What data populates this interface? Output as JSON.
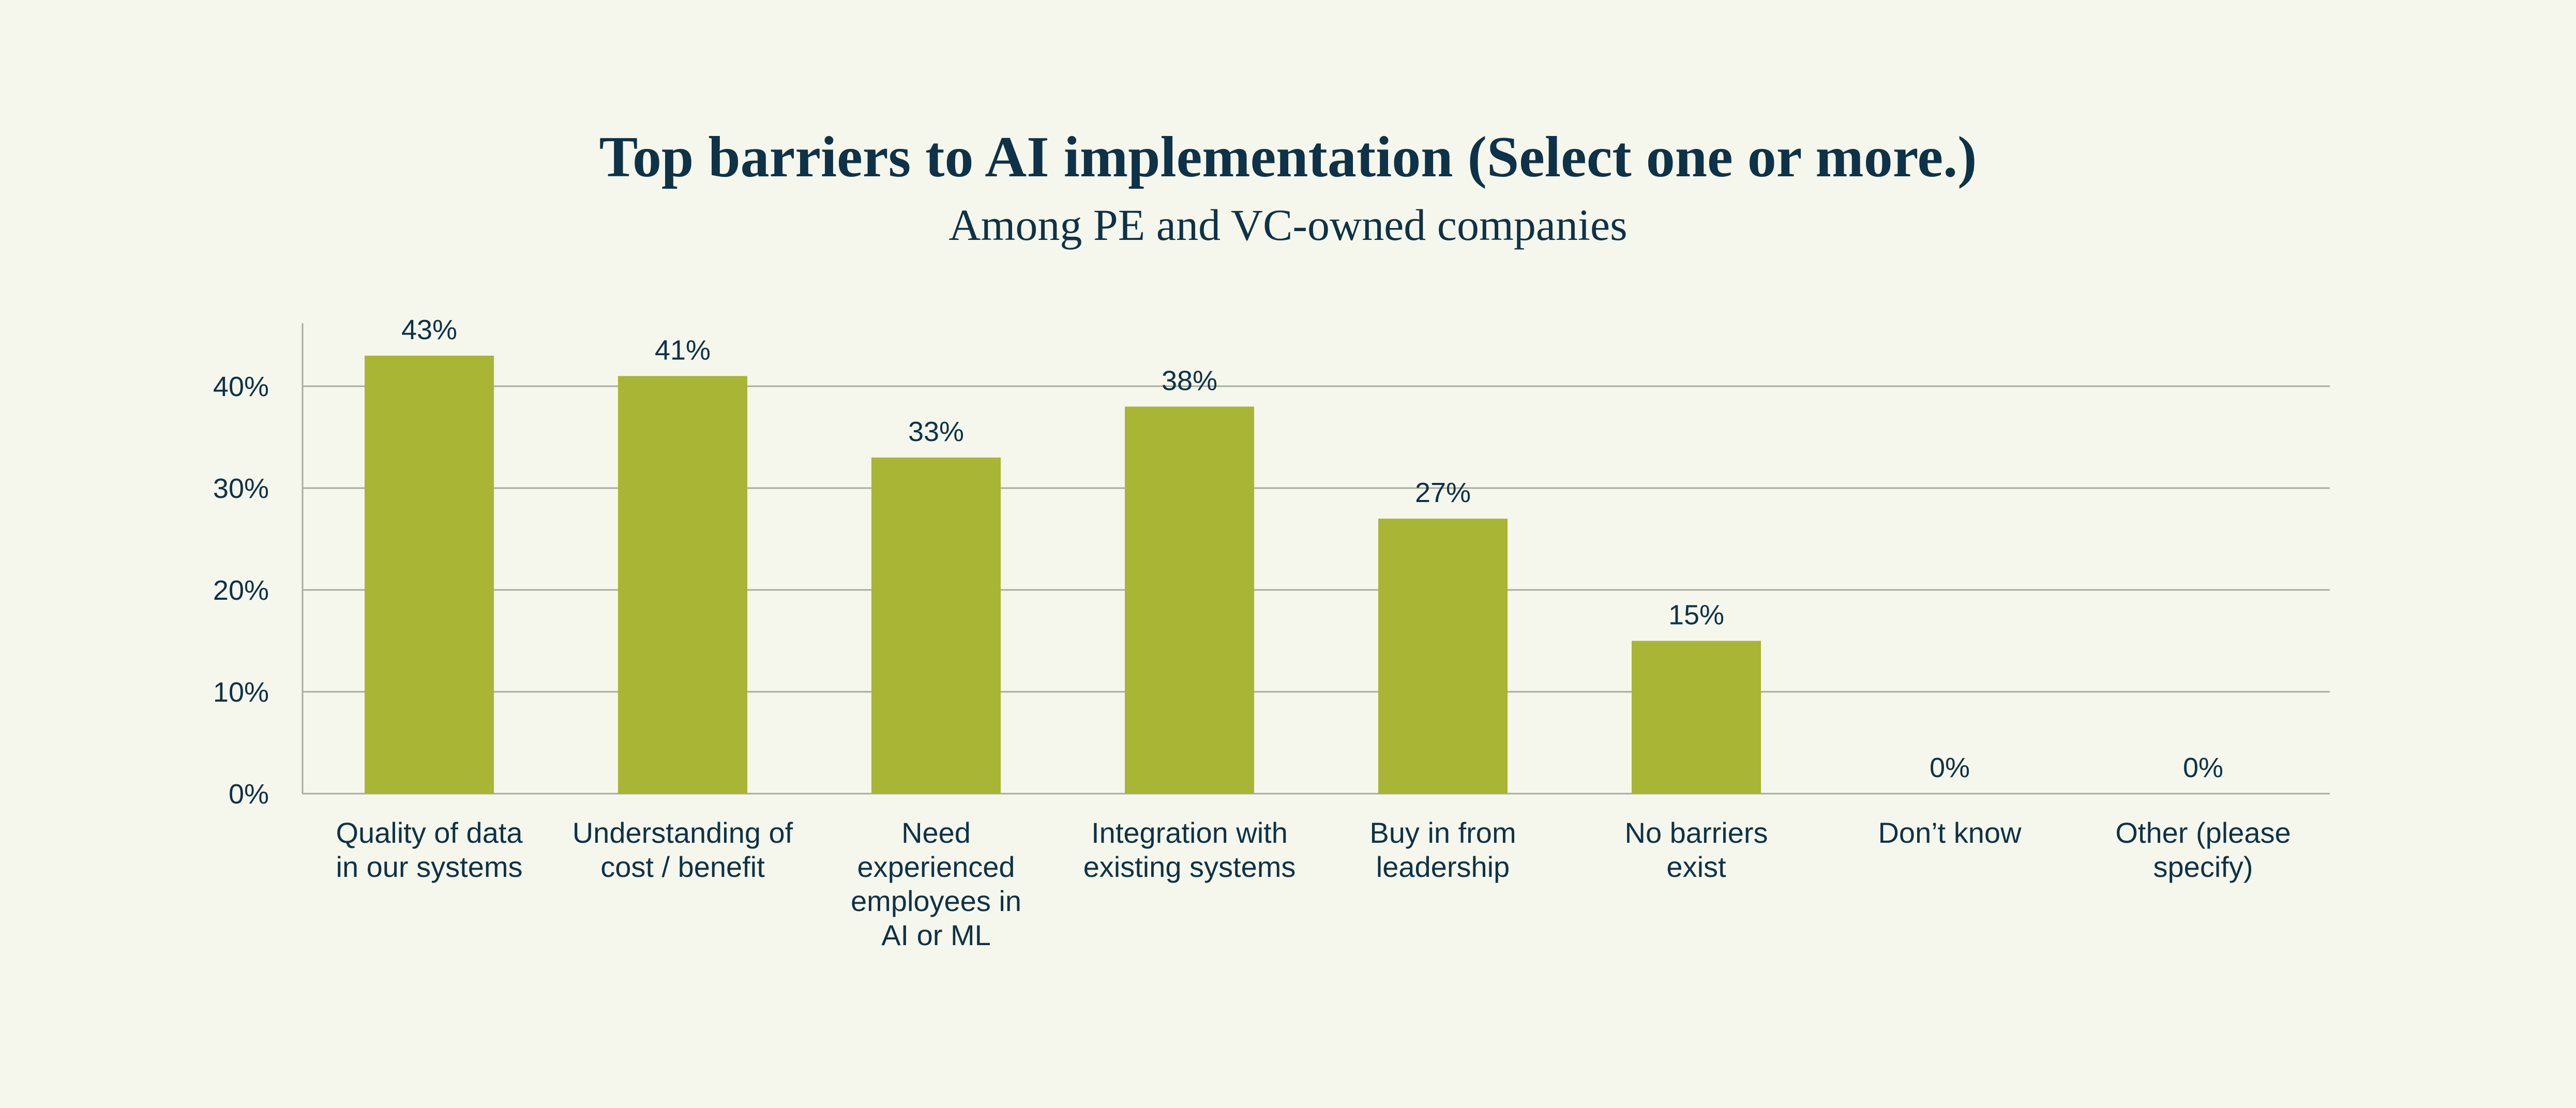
{
  "chart_data": {
    "type": "bar",
    "title": "Top barriers to AI implementation (Select one or more.)",
    "subtitle": "Among PE and VC-owned companies",
    "categories": [
      [
        "Quality of data",
        "in our systems"
      ],
      [
        "Understanding of",
        "cost / benefit"
      ],
      [
        "Need",
        "experienced",
        "employees in",
        "AI or ML"
      ],
      [
        "Integration with",
        "existing systems"
      ],
      [
        "Buy in from",
        "leadership"
      ],
      [
        "No barriers",
        "exist"
      ],
      [
        "Don’t know"
      ],
      [
        "Other (please",
        "specify)"
      ]
    ],
    "values": [
      43,
      41,
      33,
      38,
      27,
      15,
      0,
      0
    ],
    "value_labels": [
      "43%",
      "41%",
      "33%",
      "38%",
      "27%",
      "15%",
      "0%",
      "0%"
    ],
    "y_ticks": [
      0,
      10,
      20,
      30,
      40
    ],
    "y_tick_labels": [
      "0%",
      "10%",
      "20%",
      "30%",
      "40%"
    ],
    "ylim": [
      0,
      46
    ],
    "grid": true,
    "bar_color": "#a9b534",
    "grid_color": "#a7ac9c",
    "text_color": "#0e3247",
    "background": "#f5f7ec"
  }
}
